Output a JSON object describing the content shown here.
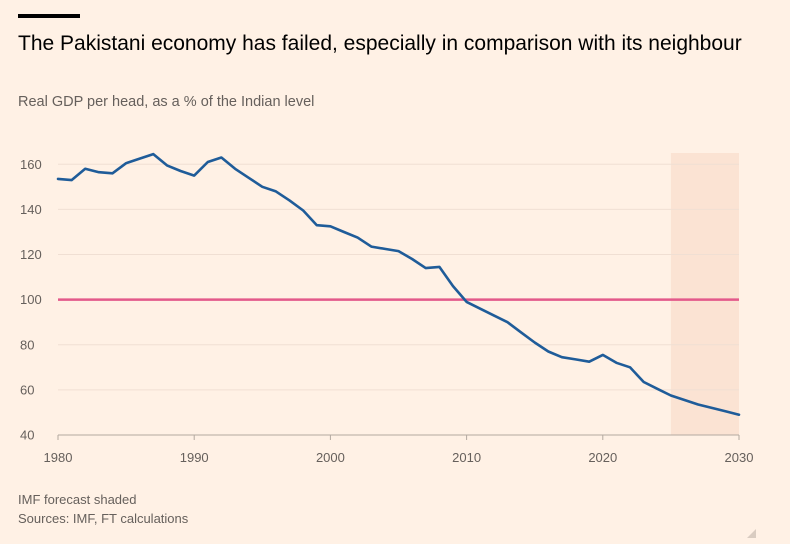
{
  "header": {
    "title": "The Pakistani economy has failed, especially in comparison with its neighbour",
    "subtitle": "Real GDP per head, as a % of the Indian level"
  },
  "footer": {
    "note": "IMF forecast shaded",
    "sources": "Sources: IMF, FT calculations"
  },
  "colors": {
    "background": "#FFF1E5",
    "line": "#1F5C99",
    "reference": "#E3598A",
    "forecast_shade": "#FBE3D3",
    "grid": "#F0DFD3"
  },
  "chart_data": {
    "type": "line",
    "title": "The Pakistani economy has failed, especially in comparison with its neighbour",
    "subtitle": "Real GDP per head, as a % of the Indian level",
    "xlabel": "",
    "ylabel": "",
    "xlim": [
      1980,
      2030
    ],
    "ylim": [
      40,
      165
    ],
    "x_ticks": [
      1980,
      1990,
      2000,
      2010,
      2020,
      2030
    ],
    "y_ticks": [
      40,
      60,
      80,
      100,
      120,
      140,
      160
    ],
    "grid": true,
    "forecast_shaded_from": 2025,
    "reference_line": 100,
    "x": [
      1980,
      1981,
      1982,
      1983,
      1984,
      1985,
      1986,
      1987,
      1988,
      1989,
      1990,
      1991,
      1992,
      1993,
      1994,
      1995,
      1996,
      1997,
      1998,
      1999,
      2000,
      2001,
      2002,
      2003,
      2004,
      2005,
      2006,
      2007,
      2008,
      2009,
      2010,
      2011,
      2012,
      2013,
      2014,
      2015,
      2016,
      2017,
      2018,
      2019,
      2020,
      2021,
      2022,
      2023,
      2024,
      2025,
      2026,
      2027,
      2028,
      2029,
      2030
    ],
    "series": [
      {
        "values": [
          153.5,
          153,
          158,
          156.5,
          156,
          160.5,
          162.5,
          164.5,
          159.5,
          157,
          155,
          161,
          163,
          158,
          154,
          150,
          148,
          144,
          139.5,
          133,
          132.5,
          130,
          127.5,
          123.5,
          122.5,
          121.5,
          118,
          114,
          114.5,
          106,
          99,
          96,
          93,
          90,
          85.5,
          81,
          77,
          74.5,
          73.5,
          72.5,
          75.5,
          72,
          70,
          63.5,
          60.5,
          57.5,
          55.5,
          53.5,
          52,
          50.5,
          49
        ]
      }
    ]
  }
}
